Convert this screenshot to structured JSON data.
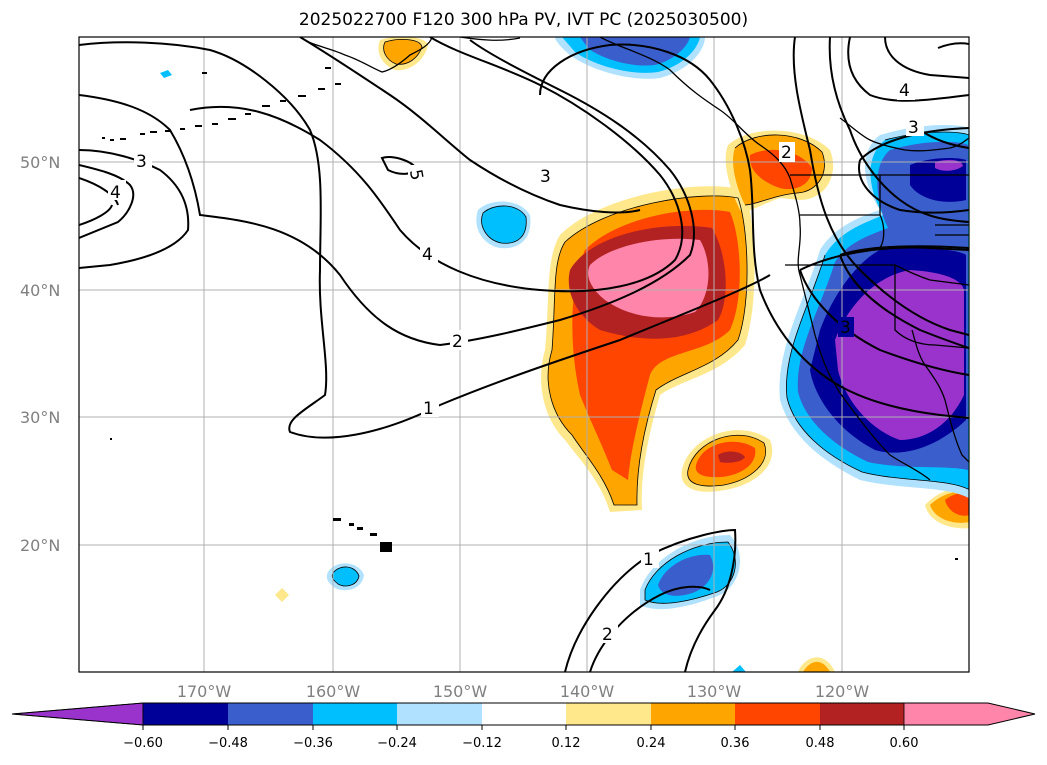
{
  "title": "2025022700 F120 300 hPa PV, IVT PC (2025030500)",
  "lon_labels": [
    "170°W",
    "160°W",
    "150°W",
    "140°W",
    "130°W",
    "120°W"
  ],
  "lat_labels": [
    "50°N",
    "40°N",
    "30°N",
    "20°N"
  ],
  "colorbar": {
    "tick_labels": [
      "−0.60",
      "−0.48",
      "−0.36",
      "−0.24",
      "−0.12",
      "0.12",
      "0.24",
      "0.36",
      "0.48",
      "0.60"
    ],
    "colors": [
      "#9933cc",
      "#000099",
      "#3a5fcd",
      "#00bfff",
      "#b0e2ff",
      "#ffffff",
      "#ffe88c",
      "#ffa500",
      "#ff4500",
      "#b22222",
      "#ff85aa"
    ]
  },
  "contour_labels": [
    "3",
    "4",
    "5",
    "3",
    "4",
    "2",
    "1",
    "2",
    "3",
    "4",
    "1",
    "2",
    "3"
  ],
  "colors": {
    "purple": "#9933cc",
    "navy": "#000099",
    "royal": "#3a5fcd",
    "sky": "#00bfff",
    "pale": "#b0e2ff",
    "yellow": "#ffe88c",
    "orange": "#ffa500",
    "redorange": "#ff4500",
    "firebrick": "#b22222",
    "pink": "#ff85aa"
  }
}
